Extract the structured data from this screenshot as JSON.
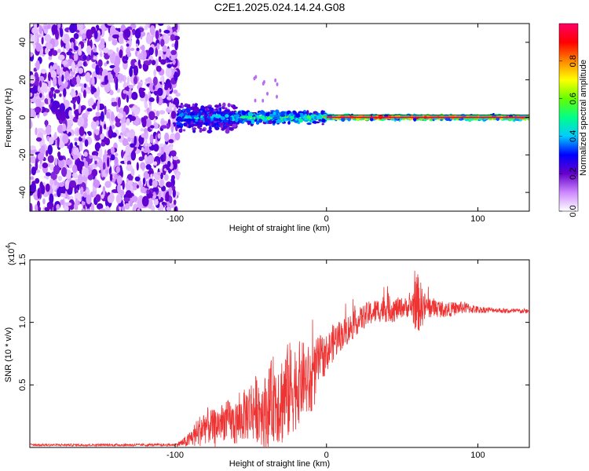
{
  "title": "C2E1.2025.024.14.24.G08",
  "colors": {
    "background": "#ffffff",
    "snr_line": "#ee3333",
    "frame": "#000000"
  },
  "chart_data": [
    {
      "type": "heatmap",
      "title": "C2E1.2025.024.14.24.G08",
      "xlabel": "Height of straight line (km)",
      "ylabel": "Frequency (Hz)",
      "xlim": [
        -196,
        134
      ],
      "ylim": [
        -50,
        50
      ],
      "x_ticks": [
        -100,
        0,
        100
      ],
      "x_tick_labels": [
        "-100",
        "0",
        "100"
      ],
      "y_ticks": [
        -40,
        -20,
        0,
        20,
        40
      ],
      "y_tick_labels": [
        "-40",
        "-20",
        "0",
        "20",
        "40"
      ],
      "grid": false,
      "description_regions": [
        {
          "x": [
            -196,
            -98
          ],
          "freq_spread": 50,
          "amplitude": 0.2,
          "kind": "noise"
        },
        {
          "x": [
            -98,
            -60
          ],
          "freq_spread": 6,
          "amplitude": 0.45,
          "kind": "broad"
        },
        {
          "x": [
            -60,
            0
          ],
          "freq_spread": 3,
          "amplitude": 0.6,
          "kind": "narrowing"
        },
        {
          "x": [
            0,
            134
          ],
          "freq_spread": 1,
          "amplitude": 0.9,
          "kind": "line"
        }
      ],
      "colorbar": {
        "label": "Normalized spectral amplitude",
        "range": [
          0,
          1
        ],
        "ticks": [
          0.0,
          0.2,
          0.4,
          0.6,
          0.8
        ],
        "tick_labels": [
          "0.0",
          "0.2",
          "0.4",
          "0.6",
          "0.8"
        ],
        "colormap": [
          "#ffffff",
          "#cc88ff",
          "#6600cc",
          "#0000ff",
          "#00ccff",
          "#00ff88",
          "#66ff00",
          "#ffff00",
          "#ff8800",
          "#ff0000",
          "#ff0066"
        ]
      }
    },
    {
      "type": "line",
      "xlabel": "Height of straight line (km)",
      "ylabel": "SNR (10 * v/v)",
      "y_scale_note": "(x10",
      "y_scale_exp": "4",
      "xlim": [
        -196,
        134
      ],
      "ylim": [
        0.0,
        1.5
      ],
      "x_ticks": [
        -100,
        0,
        100
      ],
      "x_tick_labels": [
        "-100",
        "0",
        "100"
      ],
      "y_ticks": [
        0.5,
        1.0,
        1.5
      ],
      "y_tick_labels": [
        "0.5",
        "1.0",
        "1.5"
      ],
      "grid": false,
      "series": [
        {
          "color": "#ee3333",
          "x": [
            -196,
            -150,
            -100,
            -92,
            -85,
            -80,
            -75,
            -70,
            -65,
            -60,
            -55,
            -50,
            -45,
            -40,
            -35,
            -30,
            -25,
            -20,
            -15,
            -10,
            -5,
            0,
            5,
            10,
            15,
            20,
            25,
            30,
            35,
            40,
            45,
            50,
            55,
            60,
            65,
            70,
            80,
            90,
            100,
            110,
            120,
            134
          ],
          "y": [
            0.02,
            0.02,
            0.02,
            0.05,
            0.12,
            0.18,
            0.16,
            0.2,
            0.22,
            0.18,
            0.25,
            0.3,
            0.32,
            0.28,
            0.4,
            0.38,
            0.45,
            0.5,
            0.55,
            0.5,
            0.7,
            0.75,
            0.85,
            0.9,
            0.95,
            1.0,
            1.05,
            1.08,
            1.1,
            1.12,
            1.1,
            1.12,
            1.12,
            1.15,
            1.12,
            1.12,
            1.1,
            1.12,
            1.1,
            1.1,
            1.09,
            1.09
          ],
          "noise_amp": [
            0.01,
            0.01,
            0.01,
            0.05,
            0.12,
            0.15,
            0.14,
            0.15,
            0.16,
            0.18,
            0.2,
            0.25,
            0.28,
            0.3,
            0.35,
            0.38,
            0.4,
            0.35,
            0.3,
            0.3,
            0.2,
            0.15,
            0.15,
            0.12,
            0.12,
            0.1,
            0.1,
            0.1,
            0.1,
            0.12,
            0.1,
            0.08,
            0.08,
            0.25,
            0.12,
            0.08,
            0.06,
            0.05,
            0.03,
            0.02,
            0.02,
            0.02
          ]
        }
      ]
    }
  ]
}
